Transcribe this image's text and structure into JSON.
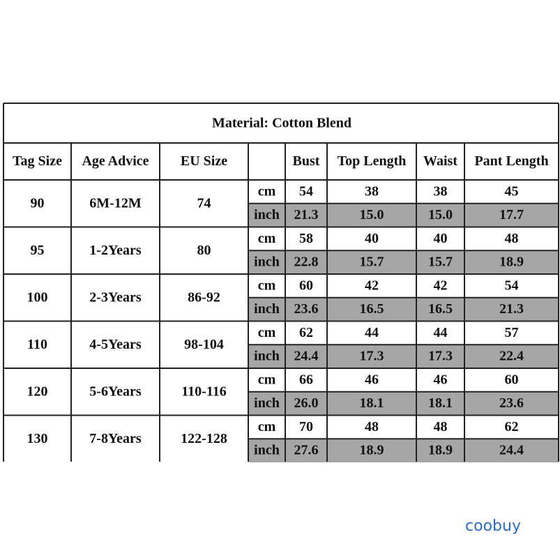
{
  "table": {
    "title": "Material: Cotton Blend",
    "headers": [
      "Tag Size",
      "Age Advice",
      "EU Size",
      "Bust",
      "Top Length",
      "Waist",
      "Pant Length"
    ],
    "units": [
      "cm",
      "inch"
    ],
    "rows": [
      {
        "tag": "90",
        "age": "6M-12M",
        "eu": "74",
        "cm": [
          "54",
          "38",
          "38",
          "45"
        ],
        "inch": [
          "21.3",
          "15.0",
          "15.0",
          "17.7"
        ]
      },
      {
        "tag": "95",
        "age": "1-2Years",
        "eu": "80",
        "cm": [
          "58",
          "40",
          "40",
          "48"
        ],
        "inch": [
          "22.8",
          "15.7",
          "15.7",
          "18.9"
        ]
      },
      {
        "tag": "100",
        "age": "2-3Years",
        "eu": "86-92",
        "cm": [
          "60",
          "42",
          "42",
          "54"
        ],
        "inch": [
          "23.6",
          "16.5",
          "16.5",
          "21.3"
        ]
      },
      {
        "tag": "110",
        "age": "4-5Years",
        "eu": "98-104",
        "cm": [
          "62",
          "44",
          "44",
          "57"
        ],
        "inch": [
          "24.4",
          "17.3",
          "17.3",
          "22.4"
        ]
      },
      {
        "tag": "120",
        "age": "5-6Years",
        "eu": "110-116",
        "cm": [
          "66",
          "46",
          "46",
          "60"
        ],
        "inch": [
          "26.0",
          "18.1",
          "18.1",
          "23.6"
        ]
      },
      {
        "tag": "130",
        "age": "7-8Years",
        "eu": "122-128",
        "cm": [
          "70",
          "48",
          "48",
          "62"
        ],
        "inch": [
          "27.6",
          "18.9",
          "18.9",
          "24.4"
        ]
      }
    ]
  },
  "watermark": "coobuy"
}
